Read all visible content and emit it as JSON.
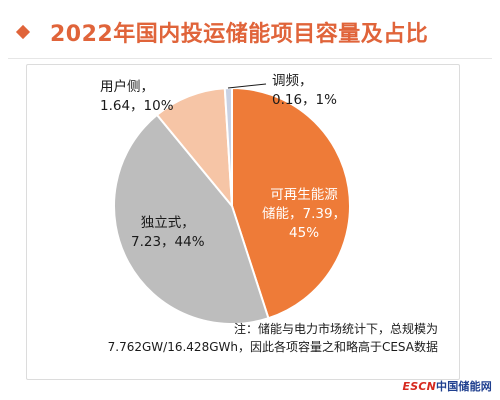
{
  "title": "2022年国内投运储能项目容量及占比",
  "note_line1": "注：储能与电力市场统计下，总规模为",
  "note_line2": "7.762GW/16.428GWh，因此各项容量之和略高于CESA数据",
  "watermark": {
    "part1": "ESCN",
    "part2": "中国储能网"
  },
  "colors": {
    "accent": "#e0643a",
    "pie": [
      "#ee7b38",
      "#bdbdbd",
      "#f6c5a6",
      "#c9d2e4"
    ]
  },
  "chart_data": {
    "type": "pie",
    "categories": [
      "可再生能源储能",
      "独立式",
      "用户侧",
      "调频"
    ],
    "values": [
      7.39,
      7.23,
      1.64,
      0.16
    ],
    "percent": [
      45,
      44,
      10,
      1
    ],
    "labels": [
      {
        "line1": "可再生能源",
        "line2": "储能，7.39，",
        "line3": "45%"
      },
      {
        "line1": "独立式，",
        "line2": "7.23，44%"
      },
      {
        "line1": "用户侧，",
        "line2": "1.64，10%"
      },
      {
        "line1": "调频，",
        "line2": "0.16，1%"
      }
    ]
  }
}
